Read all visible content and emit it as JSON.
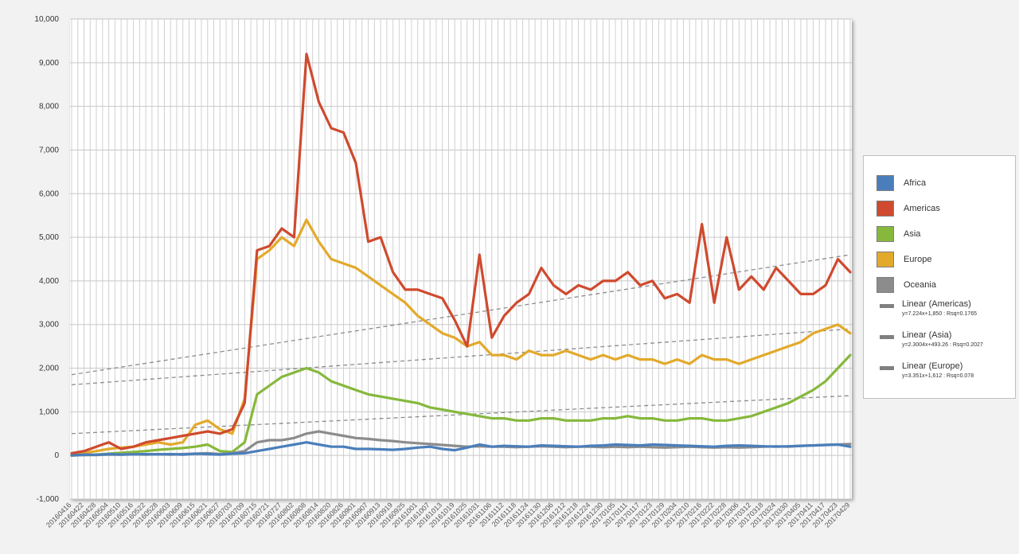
{
  "chart_data": {
    "type": "line",
    "title": "",
    "xlabel": "",
    "ylabel": "",
    "ylim": [
      -1000,
      10000
    ],
    "yticks": [
      -1000,
      0,
      1000,
      2000,
      3000,
      4000,
      5000,
      6000,
      7000,
      8000,
      9000,
      10000
    ],
    "ytick_labels": [
      "-1,000",
      "0",
      "1,000",
      "2,000",
      "3,000",
      "4,000",
      "5,000",
      "6,000",
      "7,000",
      "8,000",
      "9,000",
      "10,000"
    ],
    "xtick_labels": [
      "20160416",
      "20160422",
      "20160428",
      "20160504",
      "20160510",
      "20160516",
      "20160522",
      "20160528",
      "20160603",
      "20160609",
      "20160615",
      "20160621",
      "20160627",
      "20160703",
      "20160709",
      "20160715",
      "20160721",
      "20160727",
      "20160802",
      "20160808",
      "20160814",
      "20160820",
      "20160826",
      "20160901",
      "20160907",
      "20160913",
      "20160919",
      "20160925",
      "20161001",
      "20161007",
      "20161013",
      "20161019",
      "20161025",
      "20161031",
      "20161106",
      "20161112",
      "20161118",
      "20161124",
      "20161130",
      "20161206",
      "20161212",
      "20161218",
      "20161224",
      "20161230",
      "20170105",
      "20170111",
      "20170117",
      "20170123",
      "20170129",
      "20170204",
      "20170210",
      "20170216",
      "20170222",
      "20170228",
      "20170306",
      "20170312",
      "20170318",
      "20170324",
      "20170330",
      "20170405",
      "20170411",
      "20170417",
      "20170423",
      "20170429"
    ],
    "grid": true,
    "legend_position": "right",
    "series": [
      {
        "name": "Africa",
        "color": "#4a7ebb",
        "values": [
          0,
          20,
          15,
          30,
          20,
          25,
          30,
          25,
          30,
          20,
          40,
          30,
          20,
          40,
          50,
          100,
          150,
          200,
          250,
          300,
          250,
          200,
          200,
          150,
          150,
          140,
          130,
          150,
          180,
          200,
          150,
          120,
          180,
          250,
          200,
          220,
          210,
          200,
          230,
          220,
          210,
          200,
          220,
          230,
          250,
          240,
          230,
          250,
          240,
          230,
          220,
          210,
          200,
          220,
          230,
          220,
          210,
          200,
          210,
          220,
          230,
          240,
          250,
          200
        ]
      },
      {
        "name": "Americas",
        "color": "#cf4a2e",
        "values": [
          50,
          100,
          200,
          300,
          150,
          200,
          300,
          350,
          400,
          450,
          500,
          550,
          500,
          600,
          1200,
          4700,
          4800,
          5200,
          5000,
          9200,
          8100,
          7500,
          7400,
          6700,
          4900,
          5000,
          4200,
          3800,
          3800,
          3700,
          3600,
          3100,
          2500,
          4600,
          2700,
          3200,
          3500,
          3700,
          4300,
          3900,
          3700,
          3900,
          3800,
          4000,
          4000,
          4200,
          3900,
          4000,
          3600,
          3700,
          3500,
          5300,
          3500,
          5000,
          3800,
          4100,
          3800,
          4300,
          4000,
          3700,
          3700,
          3900,
          4500,
          4200
        ]
      },
      {
        "name": "Asia",
        "color": "#86b83c",
        "values": [
          0,
          10,
          20,
          40,
          60,
          80,
          100,
          130,
          150,
          170,
          200,
          250,
          100,
          80,
          300,
          1400,
          1600,
          1800,
          1900,
          2000,
          1900,
          1700,
          1600,
          1500,
          1400,
          1350,
          1300,
          1250,
          1200,
          1100,
          1050,
          1000,
          950,
          900,
          850,
          850,
          800,
          800,
          850,
          850,
          800,
          800,
          800,
          850,
          850,
          900,
          850,
          850,
          800,
          800,
          850,
          850,
          800,
          800,
          850,
          900,
          1000,
          1100,
          1200,
          1350,
          1500,
          1700,
          2000,
          2300
        ]
      },
      {
        "name": "Europe",
        "color": "#e3a92b",
        "values": [
          20,
          60,
          100,
          150,
          180,
          200,
          250,
          300,
          250,
          300,
          700,
          800,
          600,
          500,
          1300,
          4500,
          4700,
          5000,
          4800,
          5400,
          4900,
          4500,
          4400,
          4300,
          4100,
          3900,
          3700,
          3500,
          3200,
          3000,
          2800,
          2700,
          2500,
          2600,
          2300,
          2300,
          2200,
          2400,
          2300,
          2300,
          2400,
          2300,
          2200,
          2300,
          2200,
          2300,
          2200,
          2200,
          2100,
          2200,
          2100,
          2300,
          2200,
          2200,
          2100,
          2200,
          2300,
          2400,
          2500,
          2600,
          2800,
          2900,
          3000,
          2800
        ]
      },
      {
        "name": "Oceania",
        "color": "#8c8c8c",
        "values": [
          0,
          10,
          10,
          20,
          20,
          30,
          20,
          30,
          20,
          30,
          40,
          50,
          30,
          50,
          100,
          300,
          350,
          350,
          400,
          500,
          550,
          500,
          450,
          400,
          380,
          350,
          330,
          300,
          280,
          260,
          240,
          220,
          200,
          210,
          200,
          200,
          190,
          200,
          210,
          200,
          190,
          200,
          200,
          190,
          200,
          190,
          200,
          190,
          180,
          190,
          200,
          190,
          180,
          190,
          180,
          190,
          200,
          210,
          200,
          220,
          230,
          240,
          250,
          260
        ]
      }
    ],
    "trendlines": [
      {
        "name": "Linear (Americas)",
        "equation": "y=7.224x+1,850 : Rsq=0.1765",
        "start": 1850,
        "end": 4600
      },
      {
        "name": "Linear (Asia)",
        "equation": "y=2.3004x+493.26 : Rsq=0.2027",
        "start": 500,
        "end": 1370
      },
      {
        "name": "Linear (Europe)",
        "equation": "y=3.351x+1,612 : Rsq=0.078",
        "start": 1620,
        "end": 2900
      }
    ]
  },
  "legend": {
    "items": [
      {
        "label": "Africa",
        "color": "#4a7ebb"
      },
      {
        "label": "Americas",
        "color": "#cf4a2e"
      },
      {
        "label": "Asia",
        "color": "#86b83c"
      },
      {
        "label": "Europe",
        "color": "#e3a92b"
      },
      {
        "label": "Oceania",
        "color": "#8c8c8c"
      }
    ],
    "trends": [
      {
        "name": "Linear (Americas)",
        "equation": "y=7.224x+1,850 : Rsq=0.1765"
      },
      {
        "name": "Linear (Asia)",
        "equation": "y=2.3004x+493.26 : Rsq=0.2027"
      },
      {
        "name": "Linear (Europe)",
        "equation": "y=3.351x+1,612 : Rsq=0.078"
      }
    ]
  }
}
